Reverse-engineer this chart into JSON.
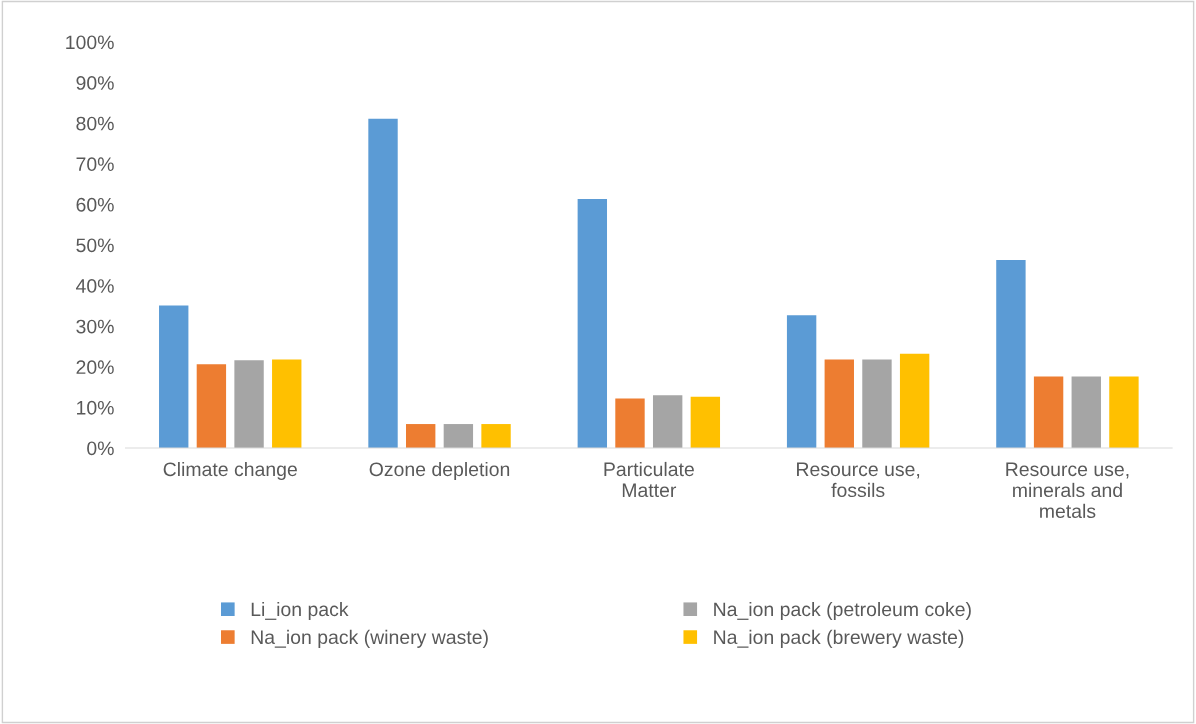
{
  "chart_data": {
    "type": "bar",
    "categories": [
      "Climate change",
      "Ozone depletion",
      "Particulate\nMatter",
      "Resource use,\nfossils",
      "Resource use,\nminerals and\nmetals"
    ],
    "series": [
      {
        "name": "Li_ion pack",
        "color": "#5b9bd5",
        "values": [
          35.1,
          81.1,
          61.3,
          32.7,
          46.3
        ]
      },
      {
        "name": "Na_ion pack (winery waste)",
        "color": "#ed7d31",
        "values": [
          20.6,
          5.9,
          12.2,
          21.8,
          17.6
        ]
      },
      {
        "name": "Na_ion pack (petroleum coke)",
        "color": "#a5a5a5",
        "values": [
          21.6,
          5.9,
          13.0,
          21.8,
          17.6
        ]
      },
      {
        "name": "Na_ion pack (brewery waste)",
        "color": "#ffc000",
        "values": [
          21.8,
          5.9,
          12.6,
          23.2,
          17.6
        ]
      }
    ],
    "ylim": [
      0,
      100
    ],
    "yticks": [
      {
        "value": 0,
        "label": "0%"
      },
      {
        "value": 10,
        "label": "10%"
      },
      {
        "value": 20,
        "label": "20%"
      },
      {
        "value": 30,
        "label": "30%"
      },
      {
        "value": 40,
        "label": "40%"
      },
      {
        "value": 50,
        "label": "50%"
      },
      {
        "value": 60,
        "label": "60%"
      },
      {
        "value": 70,
        "label": "70%"
      },
      {
        "value": 80,
        "label": "80%"
      },
      {
        "value": 90,
        "label": "90%"
      },
      {
        "value": 100,
        "label": "100%"
      }
    ],
    "grid": false,
    "legend": "bottom"
  }
}
